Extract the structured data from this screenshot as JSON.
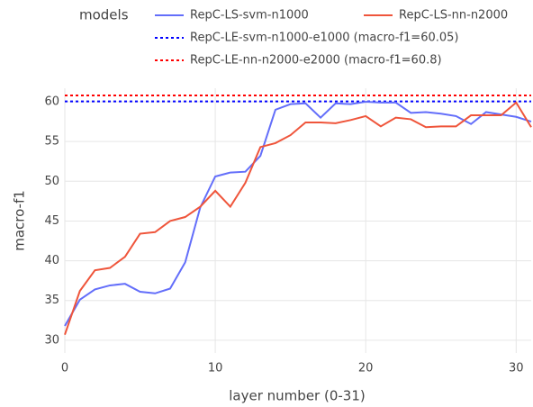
{
  "chart_data": {
    "type": "line",
    "x_label": "layer number (0-31)",
    "y_label": "macro-f1",
    "legend_title": "models",
    "x": [
      0,
      1,
      2,
      3,
      4,
      5,
      6,
      7,
      8,
      9,
      10,
      11,
      12,
      13,
      14,
      15,
      16,
      17,
      18,
      19,
      20,
      21,
      22,
      23,
      24,
      25,
      26,
      27,
      28,
      29,
      30,
      31
    ],
    "series": [
      {
        "name": "RepC-LS-svm-n1000",
        "color": "#636efa",
        "values": [
          31.8,
          35.1,
          36.4,
          36.9,
          37.1,
          36.1,
          35.9,
          36.5,
          39.8,
          46.7,
          50.6,
          51.1,
          51.2,
          53.2,
          59.0,
          59.7,
          59.8,
          58.0,
          59.8,
          59.7,
          60.0,
          59.9,
          59.9,
          58.6,
          58.7,
          58.5,
          58.2,
          57.2,
          58.7,
          58.4,
          58.1,
          57.5
        ]
      },
      {
        "name": "RepC-LS-nn-n2000",
        "color": "#ef553b",
        "values": [
          30.7,
          36.2,
          38.8,
          39.1,
          40.5,
          43.4,
          43.6,
          45.0,
          45.5,
          46.8,
          48.8,
          46.8,
          49.8,
          54.3,
          54.8,
          55.8,
          57.4,
          57.4,
          57.3,
          57.7,
          58.2,
          56.9,
          58.0,
          57.8,
          56.8,
          56.9,
          56.9,
          58.3,
          58.3,
          58.3,
          59.9,
          56.8
        ]
      }
    ],
    "hlines": [
      {
        "name": "RepC-LE-svm-n1000-e1000 (macro-f1=60.05)",
        "color": "#0000ff",
        "value": 60.05
      },
      {
        "name": "RepC-LE-nn-n2000-e2000 (macro-f1=60.8)",
        "color": "#ff0000",
        "value": 60.8
      }
    ],
    "xlim": [
      0,
      31
    ],
    "ylim": [
      28.4,
      61.7
    ],
    "xticks": [
      0,
      10,
      20,
      30
    ],
    "yticks": [
      30,
      35,
      40,
      45,
      50,
      55,
      60
    ],
    "grid": true
  }
}
